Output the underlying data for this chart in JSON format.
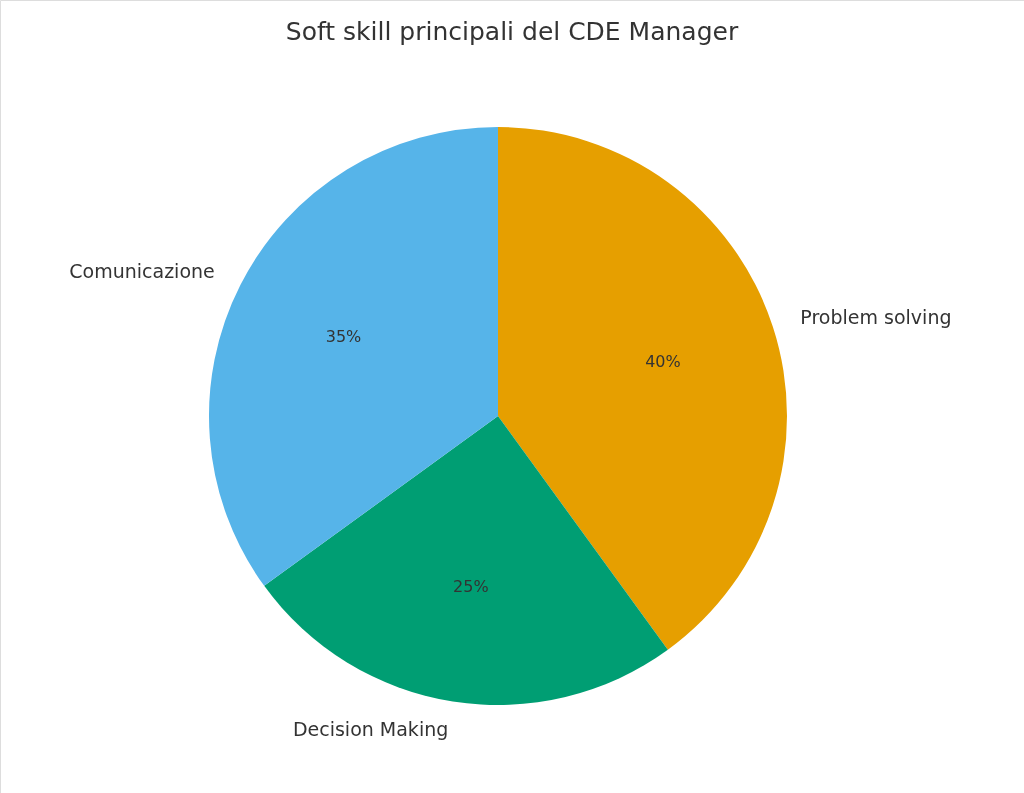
{
  "chart_data": {
    "type": "pie",
    "title": "Soft skill principali del CDE Manager",
    "categories": [
      "Problem solving",
      "Decision Making",
      "Comunicazione"
    ],
    "values": [
      40,
      25,
      35
    ],
    "colors": [
      "#e69f00",
      "#009e73",
      "#56b4e9"
    ],
    "value_labels": [
      "40%",
      "25%",
      "35%"
    ]
  }
}
